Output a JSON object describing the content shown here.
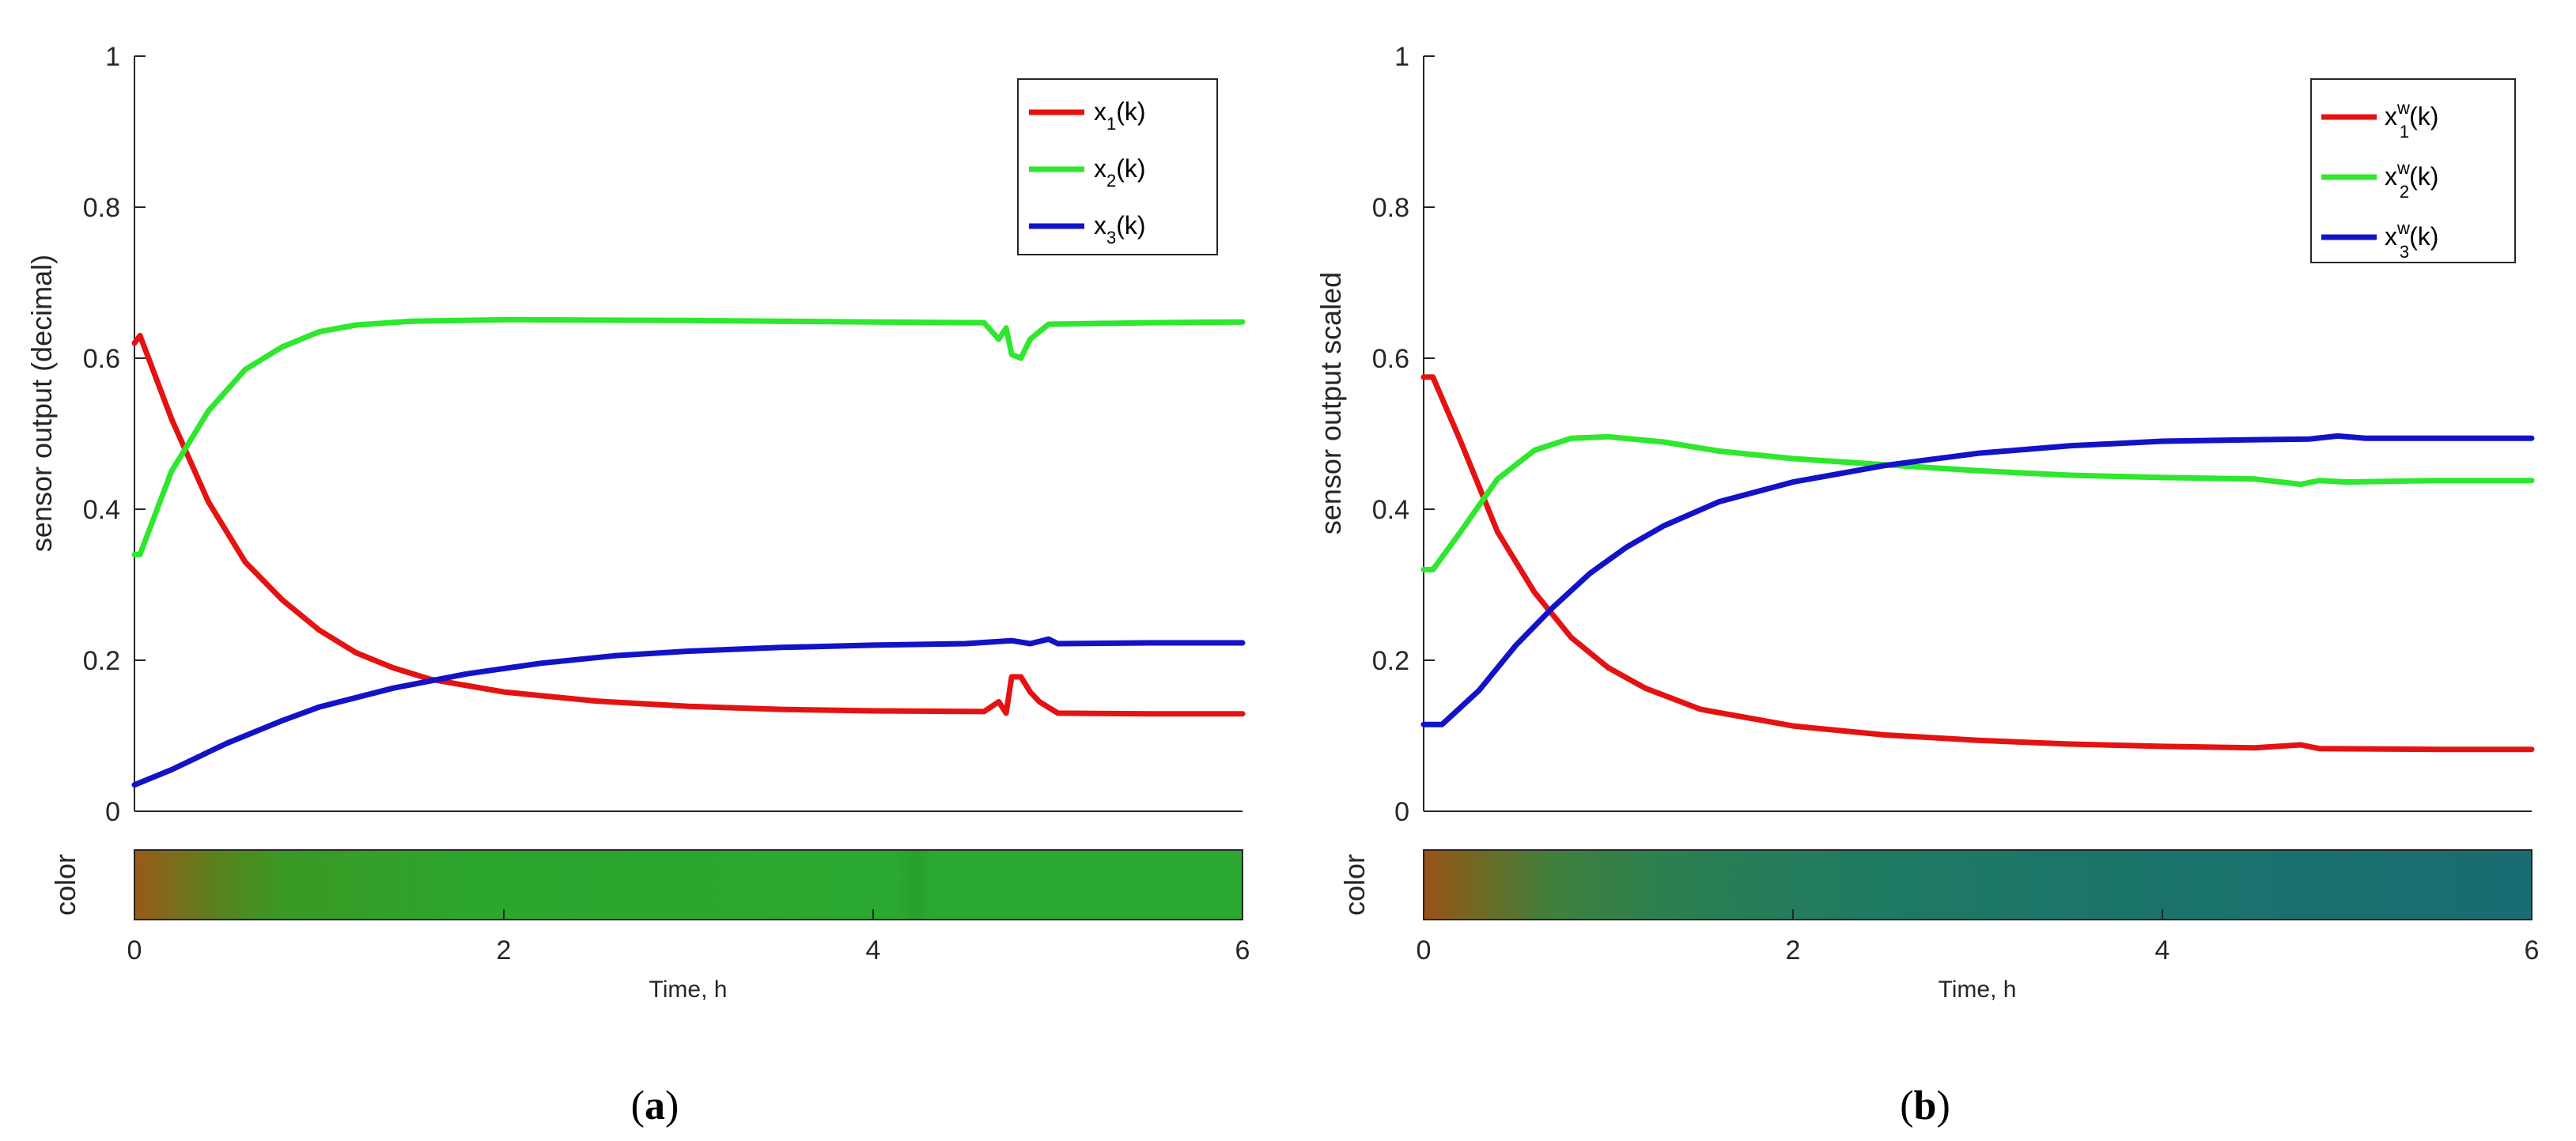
{
  "chart_data": [
    {
      "id": "a",
      "type": "line",
      "caption_letter": "a",
      "ylabel": "sensor output (decimal)",
      "xlabel": "Time, h",
      "ylim": [
        0,
        1
      ],
      "xlim": [
        0,
        6
      ],
      "yticks": [
        "0",
        "0.2",
        "0.4",
        "0.6",
        "0.8",
        "1"
      ],
      "xticks": [
        "0",
        "2",
        "4",
        "6"
      ],
      "colorbar_label": "color",
      "legend_position": "top-right",
      "series": [
        {
          "name": "x1(k)",
          "base": "x",
          "sub": "1",
          "sup": "",
          "arg": "(k)",
          "color": "#e51212",
          "points": [
            [
              0,
              0.62
            ],
            [
              0.03,
              0.63
            ],
            [
              0.2,
              0.52
            ],
            [
              0.4,
              0.41
            ],
            [
              0.6,
              0.33
            ],
            [
              0.8,
              0.28
            ],
            [
              1.0,
              0.24
            ],
            [
              1.2,
              0.21
            ],
            [
              1.4,
              0.19
            ],
            [
              1.6,
              0.175
            ],
            [
              2.0,
              0.158
            ],
            [
              2.5,
              0.146
            ],
            [
              3.0,
              0.139
            ],
            [
              3.5,
              0.135
            ],
            [
              4.0,
              0.133
            ],
            [
              4.6,
              0.132
            ],
            [
              4.68,
              0.145
            ],
            [
              4.72,
              0.13
            ],
            [
              4.75,
              0.178
            ],
            [
              4.8,
              0.178
            ],
            [
              4.85,
              0.158
            ],
            [
              4.9,
              0.145
            ],
            [
              5.0,
              0.13
            ],
            [
              5.5,
              0.129
            ],
            [
              6.0,
              0.129
            ]
          ]
        },
        {
          "name": "x2(k)",
          "base": "x",
          "sub": "2",
          "sup": "",
          "arg": "(k)",
          "color": "#2de82d",
          "points": [
            [
              0,
              0.34
            ],
            [
              0.03,
              0.34
            ],
            [
              0.2,
              0.45
            ],
            [
              0.4,
              0.53
            ],
            [
              0.6,
              0.585
            ],
            [
              0.8,
              0.615
            ],
            [
              1.0,
              0.635
            ],
            [
              1.2,
              0.644
            ],
            [
              1.5,
              0.649
            ],
            [
              2.0,
              0.651
            ],
            [
              3.0,
              0.65
            ],
            [
              4.0,
              0.648
            ],
            [
              4.6,
              0.647
            ],
            [
              4.68,
              0.625
            ],
            [
              4.72,
              0.64
            ],
            [
              4.75,
              0.605
            ],
            [
              4.8,
              0.6
            ],
            [
              4.85,
              0.625
            ],
            [
              4.95,
              0.645
            ],
            [
              5.5,
              0.647
            ],
            [
              6.0,
              0.648
            ]
          ]
        },
        {
          "name": "x3(k)",
          "base": "x",
          "sub": "3",
          "sup": "",
          "arg": "(k)",
          "color": "#1212c8",
          "points": [
            [
              0,
              0.035
            ],
            [
              0.2,
              0.055
            ],
            [
              0.5,
              0.09
            ],
            [
              0.8,
              0.12
            ],
            [
              1.0,
              0.138
            ],
            [
              1.4,
              0.163
            ],
            [
              1.8,
              0.182
            ],
            [
              2.2,
              0.196
            ],
            [
              2.6,
              0.206
            ],
            [
              3.0,
              0.212
            ],
            [
              3.5,
              0.217
            ],
            [
              4.0,
              0.22
            ],
            [
              4.5,
              0.222
            ],
            [
              4.75,
              0.226
            ],
            [
              4.85,
              0.222
            ],
            [
              4.95,
              0.228
            ],
            [
              5.0,
              0.222
            ],
            [
              5.5,
              0.223
            ],
            [
              6.0,
              0.223
            ]
          ]
        }
      ],
      "colorbar": [
        {
          "offset": 0.0,
          "color": "#9a5a16"
        },
        {
          "offset": 0.03,
          "color": "#7f6a1c"
        },
        {
          "offset": 0.08,
          "color": "#55841e"
        },
        {
          "offset": 0.14,
          "color": "#389a24"
        },
        {
          "offset": 0.3,
          "color": "#2da62e"
        },
        {
          "offset": 0.69,
          "color": "#2ba82f"
        },
        {
          "offset": 0.705,
          "color": "#27a02c"
        },
        {
          "offset": 0.72,
          "color": "#2ba82f"
        },
        {
          "offset": 1.0,
          "color": "#2ba82f"
        }
      ]
    },
    {
      "id": "b",
      "type": "line",
      "caption_letter": "b",
      "ylabel": "sensor output scaled",
      "xlabel": "Time, h",
      "ylim": [
        0,
        1
      ],
      "xlim": [
        0,
        6
      ],
      "yticks": [
        "0",
        "0.2",
        "0.4",
        "0.6",
        "0.8",
        "1"
      ],
      "xticks": [
        "0",
        "2",
        "4",
        "6"
      ],
      "colorbar_label": "color",
      "legend_position": "top-right",
      "series": [
        {
          "name": "x1w(k)",
          "base": "x",
          "sub": "1",
          "sup": "w",
          "arg": "(k)",
          "color": "#e51212",
          "points": [
            [
              0,
              0.575
            ],
            [
              0.05,
              0.575
            ],
            [
              0.2,
              0.49
            ],
            [
              0.4,
              0.37
            ],
            [
              0.6,
              0.29
            ],
            [
              0.8,
              0.23
            ],
            [
              1.0,
              0.19
            ],
            [
              1.2,
              0.163
            ],
            [
              1.5,
              0.135
            ],
            [
              2.0,
              0.113
            ],
            [
              2.5,
              0.101
            ],
            [
              3.0,
              0.094
            ],
            [
              3.5,
              0.089
            ],
            [
              4.0,
              0.086
            ],
            [
              4.5,
              0.084
            ],
            [
              4.75,
              0.088
            ],
            [
              4.85,
              0.083
            ],
            [
              5.5,
              0.082
            ],
            [
              6.0,
              0.082
            ]
          ]
        },
        {
          "name": "x2w(k)",
          "base": "x",
          "sub": "2",
          "sup": "w",
          "arg": "(k)",
          "color": "#2de82d",
          "points": [
            [
              0,
              0.32
            ],
            [
              0.05,
              0.32
            ],
            [
              0.2,
              0.37
            ],
            [
              0.4,
              0.44
            ],
            [
              0.6,
              0.478
            ],
            [
              0.8,
              0.494
            ],
            [
              1.0,
              0.496
            ],
            [
              1.3,
              0.489
            ],
            [
              1.6,
              0.477
            ],
            [
              2.0,
              0.467
            ],
            [
              2.5,
              0.459
            ],
            [
              3.0,
              0.451
            ],
            [
              3.5,
              0.445
            ],
            [
              4.0,
              0.442
            ],
            [
              4.5,
              0.44
            ],
            [
              4.75,
              0.433
            ],
            [
              4.85,
              0.438
            ],
            [
              5.0,
              0.436
            ],
            [
              5.5,
              0.438
            ],
            [
              6.0,
              0.438
            ]
          ]
        },
        {
          "name": "x3w(k)",
          "base": "x",
          "sub": "3",
          "sup": "w",
          "arg": "(k)",
          "color": "#1212c8",
          "points": [
            [
              0,
              0.115
            ],
            [
              0.1,
              0.115
            ],
            [
              0.3,
              0.16
            ],
            [
              0.5,
              0.22
            ],
            [
              0.7,
              0.27
            ],
            [
              0.9,
              0.315
            ],
            [
              1.1,
              0.35
            ],
            [
              1.3,
              0.378
            ],
            [
              1.6,
              0.41
            ],
            [
              2.0,
              0.436
            ],
            [
              2.5,
              0.458
            ],
            [
              3.0,
              0.474
            ],
            [
              3.5,
              0.484
            ],
            [
              4.0,
              0.49
            ],
            [
              4.5,
              0.492
            ],
            [
              4.8,
              0.493
            ],
            [
              4.95,
              0.497
            ],
            [
              5.1,
              0.494
            ],
            [
              5.5,
              0.494
            ],
            [
              6.0,
              0.494
            ]
          ]
        }
      ],
      "colorbar": [
        {
          "offset": 0.0,
          "color": "#9a5216"
        },
        {
          "offset": 0.05,
          "color": "#6f6a24"
        },
        {
          "offset": 0.12,
          "color": "#3f803e"
        },
        {
          "offset": 0.22,
          "color": "#2b8050"
        },
        {
          "offset": 0.4,
          "color": "#1f7a62"
        },
        {
          "offset": 0.7,
          "color": "#1a726c"
        },
        {
          "offset": 1.0,
          "color": "#196c72"
        }
      ]
    }
  ]
}
